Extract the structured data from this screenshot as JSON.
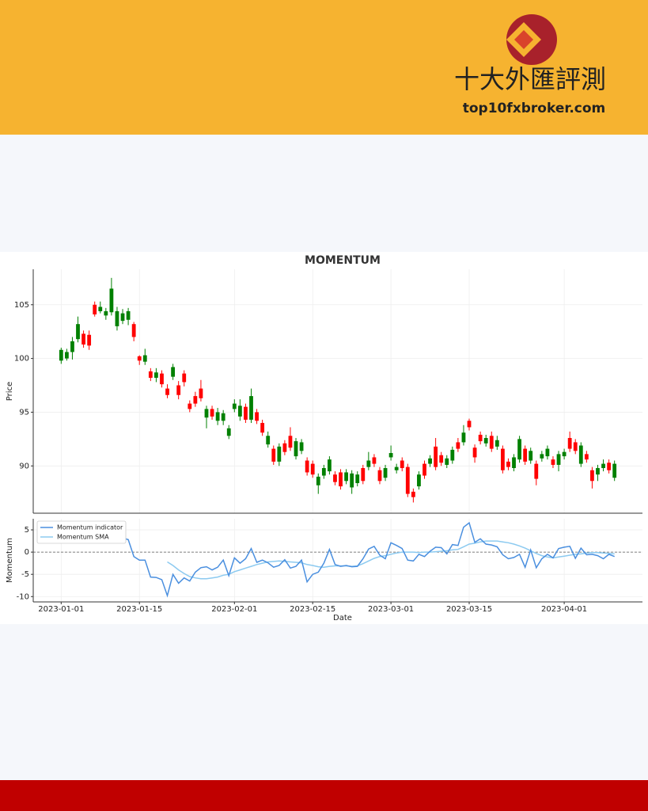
{
  "header": {
    "brand": "十大外匯評測",
    "site": "top10fxbroker.com"
  },
  "chart_data": [
    {
      "type": "candlestick",
      "title": "MOMENTUM",
      "ylabel": "Price",
      "x": [
        "2023-01-01",
        "2023-01-02",
        "2023-01-03",
        "2023-01-04",
        "2023-01-05",
        "2023-01-06",
        "2023-01-07",
        "2023-01-08",
        "2023-01-09",
        "2023-01-10",
        "2023-01-11",
        "2023-01-12",
        "2023-01-13",
        "2023-01-14",
        "2023-01-15",
        "2023-01-16",
        "2023-01-17",
        "2023-01-18",
        "2023-01-19",
        "2023-01-20",
        "2023-01-21",
        "2023-01-22",
        "2023-01-23",
        "2023-01-24",
        "2023-01-25",
        "2023-01-26",
        "2023-01-27",
        "2023-01-28",
        "2023-01-29",
        "2023-01-30",
        "2023-01-31",
        "2023-02-01",
        "2023-02-02",
        "2023-02-03",
        "2023-02-04",
        "2023-02-05",
        "2023-02-06",
        "2023-02-07",
        "2023-02-08",
        "2023-02-09",
        "2023-02-10",
        "2023-02-11",
        "2023-02-12",
        "2023-02-13",
        "2023-02-14",
        "2023-02-15",
        "2023-02-16",
        "2023-02-17",
        "2023-02-18",
        "2023-02-19",
        "2023-02-20",
        "2023-02-21",
        "2023-02-22",
        "2023-02-23",
        "2023-02-24",
        "2023-02-25",
        "2023-02-26",
        "2023-02-27",
        "2023-02-28",
        "2023-03-01",
        "2023-03-02",
        "2023-03-03",
        "2023-03-04",
        "2023-03-05",
        "2023-03-06",
        "2023-03-07",
        "2023-03-08",
        "2023-03-09",
        "2023-03-10",
        "2023-03-11",
        "2023-03-12",
        "2023-03-13",
        "2023-03-14",
        "2023-03-15",
        "2023-03-16",
        "2023-03-17",
        "2023-03-18",
        "2023-03-19",
        "2023-03-20",
        "2023-03-21",
        "2023-03-22",
        "2023-03-23",
        "2023-03-24",
        "2023-03-25",
        "2023-03-26",
        "2023-03-27",
        "2023-03-28",
        "2023-03-29",
        "2023-03-30",
        "2023-03-31",
        "2023-04-01",
        "2023-04-02",
        "2023-04-03",
        "2023-04-04",
        "2023-04-05",
        "2023-04-06",
        "2023-04-07",
        "2023-04-08",
        "2023-04-09",
        "2023-04-10"
      ],
      "open": [
        99.8,
        100,
        100.6,
        101.8,
        102.3,
        102.2,
        105,
        104.4,
        104,
        104.3,
        103,
        103.5,
        103.6,
        103.2,
        100.2,
        99.7,
        98.8,
        98.2,
        98.6,
        97.2,
        98.3,
        97.5,
        98.6,
        95.8,
        96.5,
        97.2,
        94.5,
        95.3,
        94.2,
        94.2,
        92.8,
        95.3,
        94.6,
        95.5,
        94.3,
        95,
        94,
        92,
        91.6,
        90.4,
        92.1,
        92.8,
        90.9,
        91.4,
        90.5,
        90.2,
        88.2,
        89.1,
        89.5,
        89.2,
        89.4,
        88.6,
        88,
        88.4,
        89.8,
        89.9,
        90.8,
        89.6,
        88.9,
        90.8,
        89.6,
        90.5,
        89.9,
        87.6,
        88.1,
        90.2,
        90.2,
        91.8,
        91,
        90.1,
        90.5,
        92.2,
        92.2,
        94.2,
        91.7,
        92.9,
        92.1,
        92.8,
        91.8,
        91.6,
        90.4,
        89.8,
        90.6,
        91.6,
        90.5,
        90.2,
        90.7,
        90.9,
        90.6,
        90.1,
        90.9,
        92.6,
        92.2,
        90.2,
        91.1,
        89.6,
        89.2,
        89.8,
        90.3,
        88.9
      ],
      "high": [
        101,
        100.9,
        102,
        103.9,
        102.6,
        102.6,
        105.3,
        105.3,
        104.7,
        107.5,
        104.8,
        104.6,
        104.7,
        103.4,
        100.3,
        100.9,
        99.1,
        99.1,
        98.9,
        97.6,
        99.5,
        97.9,
        98.9,
        96.1,
        96.9,
        98,
        95.6,
        95.6,
        95.4,
        95.2,
        93.8,
        96.2,
        96.2,
        95.8,
        97.2,
        95.3,
        94.3,
        93.2,
        91.9,
        92.1,
        92.4,
        93.6,
        92.6,
        92.5,
        90.8,
        90.5,
        89.3,
        90.1,
        90.9,
        89.5,
        89.7,
        89.7,
        89.6,
        89.5,
        90.1,
        91.3,
        91.1,
        89.9,
        90.1,
        91.9,
        90.2,
        90.8,
        90.2,
        87.9,
        89.5,
        90.5,
        91,
        92.6,
        91.3,
        91,
        91.8,
        92.6,
        93.8,
        94.4,
        92,
        93.2,
        92.9,
        93.2,
        92.8,
        91.9,
        90.7,
        91.1,
        92.8,
        91.9,
        91.7,
        90.5,
        91.4,
        91.9,
        90.9,
        91.4,
        91.6,
        93.2,
        92.5,
        92.2,
        91.4,
        89.9,
        90.1,
        90.6,
        90.6,
        90.5
      ],
      "low": [
        99.5,
        99.8,
        99.9,
        101.5,
        101,
        100.8,
        103.9,
        104.2,
        103.6,
        104,
        102.6,
        103.2,
        103.1,
        101.6,
        99.4,
        99.4,
        97.9,
        97.8,
        97.3,
        96.3,
        98,
        96.2,
        97.4,
        95,
        95.5,
        96,
        93.5,
        94.3,
        93.8,
        93.8,
        92.5,
        95,
        94.2,
        94,
        94,
        93.9,
        92.8,
        91.7,
        90.1,
        90,
        91,
        91.4,
        90.6,
        91.1,
        89.1,
        88.9,
        87.4,
        88.8,
        89.2,
        88.2,
        87.8,
        88.3,
        87.4,
        88.1,
        88.3,
        89.6,
        89.9,
        88.3,
        88.6,
        90.5,
        89.3,
        89.5,
        87.1,
        86.6,
        87.8,
        88.8,
        89.9,
        89.6,
        90,
        89.8,
        90.2,
        91.3,
        91.9,
        93.3,
        90.3,
        92,
        91.8,
        91.3,
        91.5,
        89.3,
        89.6,
        89.5,
        90.3,
        90.1,
        90.2,
        88.2,
        90.4,
        90.6,
        89.8,
        89.5,
        90.6,
        91.3,
        91.1,
        89.9,
        90.3,
        87.9,
        88.6,
        89.5,
        89.3,
        88.6
      ],
      "close": [
        100.8,
        100.6,
        101.6,
        103.2,
        101.3,
        101.2,
        104.1,
        104.8,
        104.4,
        106.5,
        104.4,
        104.2,
        104.4,
        102,
        99.8,
        100.3,
        98.2,
        98.7,
        97.6,
        96.6,
        99.2,
        96.6,
        97.8,
        95.3,
        95.8,
        96.3,
        95.3,
        94.6,
        95,
        94.9,
        93.5,
        95.8,
        95.6,
        94.3,
        96.5,
        94.2,
        93.1,
        92.8,
        90.4,
        91.8,
        91.3,
        91.7,
        92.3,
        92.2,
        89.4,
        89.2,
        89,
        89.8,
        90.6,
        88.5,
        88.1,
        89.4,
        89.3,
        89.2,
        88.6,
        90.5,
        90.2,
        88.6,
        89.8,
        91.2,
        89.9,
        89.8,
        87.4,
        87.1,
        89.2,
        89.1,
        90.7,
        89.9,
        90.3,
        90.7,
        91.5,
        91.6,
        93.1,
        93.6,
        90.8,
        92.3,
        92.6,
        91.6,
        92.4,
        89.6,
        89.9,
        90.8,
        92.5,
        90.4,
        91.4,
        88.8,
        91.1,
        91.6,
        90.1,
        91.1,
        91.3,
        91.6,
        91.4,
        91.9,
        90.6,
        88.6,
        89.8,
        90.2,
        89.6,
        90.2
      ],
      "up_color": "#008000",
      "down_color": "#ff0000",
      "xlim": [
        "2022-12-27",
        "2023-04-15"
      ],
      "ylim": [
        85.6,
        108.3
      ],
      "yticks": [
        90,
        95,
        100,
        105
      ],
      "grid": true
    },
    {
      "type": "line",
      "xlabel": "Date",
      "ylabel": "Momentum",
      "x": [
        "2023-01-01",
        "2023-01-02",
        "2023-01-03",
        "2023-01-04",
        "2023-01-05",
        "2023-01-06",
        "2023-01-07",
        "2023-01-08",
        "2023-01-09",
        "2023-01-10",
        "2023-01-11",
        "2023-01-12",
        "2023-01-13",
        "2023-01-14",
        "2023-01-15",
        "2023-01-16",
        "2023-01-17",
        "2023-01-18",
        "2023-01-19",
        "2023-01-20",
        "2023-01-21",
        "2023-01-22",
        "2023-01-23",
        "2023-01-24",
        "2023-01-25",
        "2023-01-26",
        "2023-01-27",
        "2023-01-28",
        "2023-01-29",
        "2023-01-30",
        "2023-01-31",
        "2023-02-01",
        "2023-02-02",
        "2023-02-03",
        "2023-02-04",
        "2023-02-05",
        "2023-02-06",
        "2023-02-07",
        "2023-02-08",
        "2023-02-09",
        "2023-02-10",
        "2023-02-11",
        "2023-02-12",
        "2023-02-13",
        "2023-02-14",
        "2023-02-15",
        "2023-02-16",
        "2023-02-17",
        "2023-02-18",
        "2023-02-19",
        "2023-02-20",
        "2023-02-21",
        "2023-02-22",
        "2023-02-23",
        "2023-02-24",
        "2023-02-25",
        "2023-02-26",
        "2023-02-27",
        "2023-02-28",
        "2023-03-01",
        "2023-03-02",
        "2023-03-03",
        "2023-03-04",
        "2023-03-05",
        "2023-03-06",
        "2023-03-07",
        "2023-03-08",
        "2023-03-09",
        "2023-03-10",
        "2023-03-11",
        "2023-03-12",
        "2023-03-13",
        "2023-03-14",
        "2023-03-15",
        "2023-03-16",
        "2023-03-17",
        "2023-03-18",
        "2023-03-19",
        "2023-03-20",
        "2023-03-21",
        "2023-03-22",
        "2023-03-23",
        "2023-03-24",
        "2023-03-25",
        "2023-03-26",
        "2023-03-27",
        "2023-03-28",
        "2023-03-29",
        "2023-03-30",
        "2023-03-31",
        "2023-04-01",
        "2023-04-02",
        "2023-04-03",
        "2023-04-04",
        "2023-04-05",
        "2023-04-06",
        "2023-04-07",
        "2023-04-08",
        "2023-04-09",
        "2023-04-10"
      ],
      "series": [
        {
          "name": "Momentum indicator",
          "color": "#4a8fdf",
          "values": [
            null,
            null,
            null,
            null,
            null,
            null,
            null,
            null,
            null,
            null,
            3.5,
            3.2,
            2.8,
            -1,
            -1.8,
            -1.8,
            -5.6,
            -5.7,
            -6.2,
            -9.8,
            -5,
            -7,
            -5.8,
            -6.5,
            -4.5,
            -3.5,
            -3.3,
            -4,
            -3.4,
            -1.8,
            -5.3,
            -1.3,
            -2.5,
            -1.5,
            0.8,
            -2.3,
            -1.8,
            -2.4,
            -3.4,
            -3,
            -1.7,
            -3.6,
            -3.2,
            -1.8,
            -6.7,
            -5,
            -4.5,
            -2.5,
            0.6,
            -2.8,
            -3.2,
            -3,
            -3.3,
            -3.2,
            -1.5,
            0.7,
            1.3,
            -0.7,
            -1.5,
            2.1,
            1.5,
            0.8,
            -1.8,
            -2,
            -0.5,
            -1,
            0.2,
            1.1,
            1,
            -0.4,
            1.7,
            1.5,
            5.6,
            6.6,
            2.2,
            3,
            1.8,
            1.6,
            1.2,
            -0.6,
            -1.5,
            -1.2,
            -0.5,
            -3.4,
            0.5,
            -3.5,
            -1.5,
            -0.5,
            -1.3,
            0.8,
            1.1,
            1.3,
            -1.4,
            0.9,
            -0.6,
            -0.5,
            -0.8,
            -1.5,
            -0.5,
            -1
          ]
        },
        {
          "name": "Momentum SMA",
          "color": "#8ccaf0",
          "values": [
            null,
            null,
            null,
            null,
            null,
            null,
            null,
            null,
            null,
            null,
            null,
            null,
            null,
            null,
            null,
            null,
            null,
            null,
            null,
            -2.2,
            -3,
            -4,
            -4.8,
            -5.5,
            -5.8,
            -6,
            -6,
            -5.8,
            -5.6,
            -5.2,
            -5,
            -4.4,
            -4,
            -3.6,
            -3.2,
            -2.8,
            -2.5,
            -2.2,
            -2.1,
            -2,
            -2.1,
            -2.2,
            -2.3,
            -2.4,
            -2.8,
            -3,
            -3.3,
            -3.4,
            -3.2,
            -3.1,
            -3.1,
            -3.1,
            -3.2,
            -3.1,
            -2.6,
            -2,
            -1.4,
            -1,
            -0.8,
            -0.5,
            -0.2,
            0,
            0,
            0,
            -0.1,
            0,
            0,
            0.1,
            0.2,
            0.3,
            0.5,
            0.6,
            1.2,
            1.8,
            2,
            2.3,
            2.5,
            2.5,
            2.5,
            2.3,
            2.1,
            1.8,
            1.4,
            0.9,
            0.3,
            -0.3,
            -0.8,
            -1.1,
            -1.3,
            -1.1,
            -0.9,
            -0.7,
            -0.5,
            -0.4,
            -0.2,
            -0.1,
            -0.1,
            -0.2,
            -0.3,
            -0.4
          ]
        }
      ],
      "hline": 0,
      "legend": "upper left",
      "xlim": [
        "2022-12-27",
        "2023-04-15"
      ],
      "ylim": [
        -11.2,
        7.5
      ],
      "yticks": [
        -10,
        -5,
        0,
        5
      ],
      "xticks": [
        "2023-01-01",
        "2023-01-15",
        "2023-02-01",
        "2023-02-15",
        "2023-03-01",
        "2023-03-15",
        "2023-04-01"
      ],
      "grid": true
    }
  ]
}
